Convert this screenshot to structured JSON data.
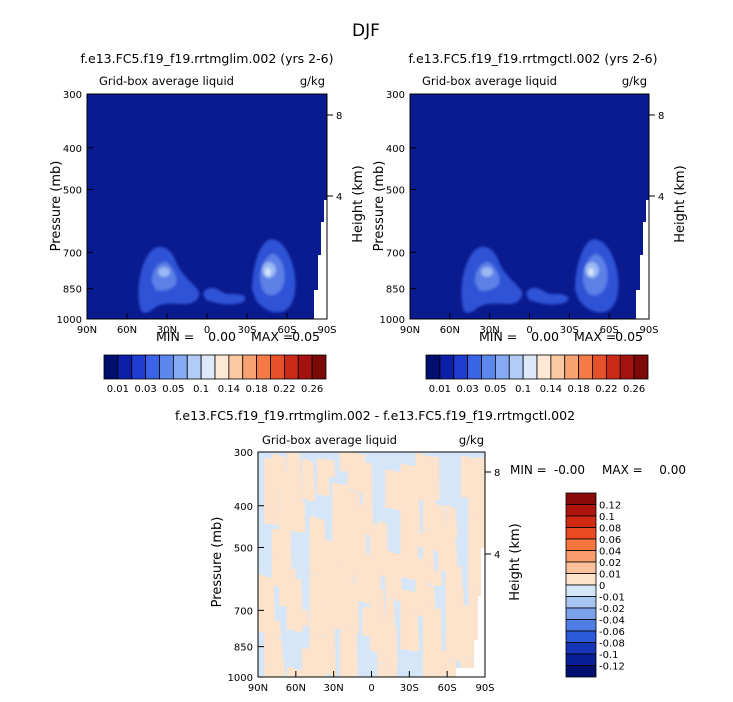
{
  "page": {
    "title": "DJF"
  },
  "palette": {
    "dark_blue": "#0a1a8f",
    "blob_blue": "#2f52d6",
    "blob_mid": "#5b80e6",
    "blob_light": "#9ab8f3",
    "tan": "#fde3cc",
    "light_blue": "#d4e6f8"
  },
  "chart_data": [
    {
      "id": "panel-left",
      "type": "heatmap",
      "title": "f.e13.FC5.f19_f19.rrtmglim.002 (yrs 2-6)",
      "subtitle": "Grid-box average liquid",
      "units": "g/kg",
      "xlabel": "",
      "ylabel": "Pressure (mb)",
      "ylabel_right": "Height (km)",
      "x_ticks": [
        "90N",
        "60N",
        "30N",
        "0",
        "30S",
        "60S",
        "90S"
      ],
      "y_ticks": [
        "300",
        "400",
        "500",
        "700",
        "850",
        "1000"
      ],
      "y_ticks_right": [
        "8",
        "4"
      ],
      "ylim": [
        300,
        1000
      ],
      "stats": {
        "min_label": "MIN =",
        "min": "0.00",
        "max_label": "MAX =",
        "max": "0.05"
      },
      "colorbar": {
        "orientation": "horizontal",
        "labels": [
          "0.01",
          "0.03",
          "0.05",
          "0.1",
          "0.14",
          "0.18",
          "0.22",
          "0.26"
        ],
        "colors": [
          "#000f6e",
          "#0c1fa8",
          "#1f3dd0",
          "#3a63e6",
          "#5c88ee",
          "#86aaf3",
          "#b3cbf7",
          "#dde8fb",
          "#fde8d4",
          "#fcc9a3",
          "#f9a373",
          "#f47a48",
          "#e6512a",
          "#c92a18",
          "#a4110e",
          "#7c0a08"
        ]
      }
    },
    {
      "id": "panel-right",
      "type": "heatmap",
      "title": "f.e13.FC5.f19_f19.rrtmgctl.002 (yrs 2-6)",
      "subtitle": "Grid-box average liquid",
      "units": "g/kg",
      "xlabel": "",
      "ylabel": "Pressure (mb)",
      "ylabel_right": "Height (km)",
      "x_ticks": [
        "90N",
        "60N",
        "30N",
        "0",
        "30S",
        "60S",
        "90S"
      ],
      "y_ticks": [
        "300",
        "400",
        "500",
        "700",
        "850",
        "1000"
      ],
      "y_ticks_right": [
        "8",
        "4"
      ],
      "ylim": [
        300,
        1000
      ],
      "stats": {
        "min_label": "MIN =",
        "min": "0.00",
        "max_label": "MAX =",
        "max": "0.05"
      },
      "colorbar": {
        "orientation": "horizontal",
        "labels": [
          "0.01",
          "0.03",
          "0.05",
          "0.1",
          "0.14",
          "0.18",
          "0.22",
          "0.26"
        ],
        "colors": [
          "#000f6e",
          "#0c1fa8",
          "#1f3dd0",
          "#3a63e6",
          "#5c88ee",
          "#86aaf3",
          "#b3cbf7",
          "#dde8fb",
          "#fde8d4",
          "#fcc9a3",
          "#f9a373",
          "#f47a48",
          "#e6512a",
          "#c92a18",
          "#a4110e",
          "#7c0a08"
        ]
      }
    },
    {
      "id": "panel-diff",
      "type": "heatmap",
      "title": "f.e13.FC5.f19_f19.rrtmglim.002 - f.e13.FC5.f19_f19.rrtmgctl.002",
      "subtitle": "Grid-box average liquid",
      "units": "g/kg",
      "xlabel": "",
      "ylabel": "Pressure (mb)",
      "ylabel_right": "Height (km)",
      "x_ticks": [
        "90N",
        "60N",
        "30N",
        "0",
        "30S",
        "60S",
        "90S"
      ],
      "y_ticks": [
        "300",
        "400",
        "500",
        "700",
        "850",
        "1000"
      ],
      "y_ticks_right": [
        "8",
        "4"
      ],
      "ylim": [
        300,
        1000
      ],
      "stats": {
        "min_label": "MIN =",
        "min": "-0.00",
        "max_label": "MAX =",
        "max": "0.00"
      },
      "colorbar": {
        "orientation": "vertical",
        "labels": [
          "0.12",
          "0.1",
          "0.08",
          "0.06",
          "0.04",
          "0.02",
          "0.01",
          "0",
          "-0.01",
          "-0.02",
          "-0.04",
          "-0.06",
          "-0.08",
          "-0.1",
          "-0.12"
        ],
        "colors": [
          "#8a0a0a",
          "#b0140f",
          "#d02a14",
          "#ea4a22",
          "#f77640",
          "#fb9c6c",
          "#fcc09c",
          "#fde3cc",
          "#d4e6f8",
          "#a8c6f2",
          "#7aa2ec",
          "#4f7ee6",
          "#2c5ad8",
          "#1636b8",
          "#0a1e96",
          "#001070"
        ]
      }
    }
  ]
}
